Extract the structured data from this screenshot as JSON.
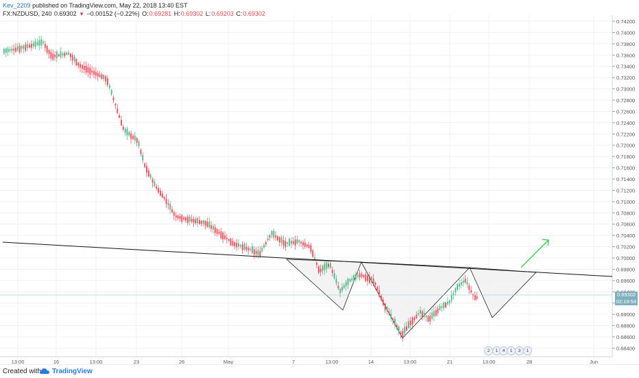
{
  "header": {
    "author": "Kev_2209",
    "published_text": "published on TradingView.com, May 22, 2018 13:40 EST",
    "symbol": "FX:NZDUSD, 240",
    "last": "0.69302",
    "change": "−0.00152 (−0.22%)",
    "o_label": "O:",
    "o_val": "0.69281",
    "h_label": "H:",
    "h_val": "0.69302",
    "l_label": "L:",
    "l_val": "0.69203",
    "c_label": "C:",
    "c_val": "0.69302"
  },
  "price_axis": {
    "labels": [
      "0.74200",
      "0.74000",
      "0.73800",
      "0.73600",
      "0.73400",
      "0.73200",
      "0.73000",
      "0.72800",
      "0.72600",
      "0.72400",
      "0.72200",
      "0.72000",
      "0.71800",
      "0.71600",
      "0.71400",
      "0.71200",
      "0.71000",
      "0.70800",
      "0.70600",
      "0.70400",
      "0.70200",
      "0.70000",
      "0.69800",
      "0.69600",
      "0.69400",
      "0.69200",
      "0.69000",
      "0.68800",
      "0.68600",
      "0.68400"
    ],
    "current_price": "0.69302",
    "countdown": "02:19:54"
  },
  "time_axis": {
    "labels": [
      "13:00",
      "16",
      "13:00",
      "23",
      "26",
      "May",
      "7",
      "13:00",
      "14",
      "13:00",
      "21",
      "13:00",
      "28",
      "Jun"
    ]
  },
  "event_icons": [
    "2",
    "1",
    "4",
    "1",
    "3",
    "1"
  ],
  "footer": {
    "created_with": "Created with",
    "brand": "TradingView"
  },
  "colors": {
    "up": "#53b987",
    "down": "#eb4d5c",
    "trendline": "#111111",
    "arrow": "#2ecc40",
    "pattern_fill": "#f2f2f2",
    "grid": "#eef1f4"
  },
  "chart_data": {
    "type": "candlestick",
    "ylim": [
      0.683,
      0.7425
    ],
    "pattern": "inverse head and shoulders with neckline"
  }
}
